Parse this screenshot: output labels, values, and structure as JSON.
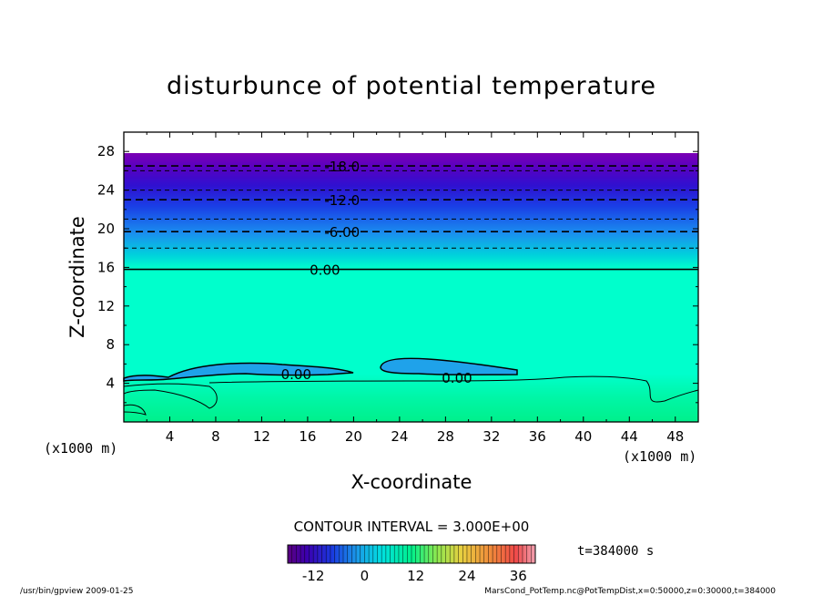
{
  "chart_data": {
    "type": "heatmap",
    "title": "disturbunce of potential temperature",
    "xlabel": "X-coordinate",
    "ylabel": "Z-coordinate",
    "x_unit_label": "(x1000 m)",
    "z_unit_label": "(x1000 m)",
    "xlim": [
      0,
      50
    ],
    "ylim": [
      0,
      30
    ],
    "x_ticks": [
      4,
      8,
      12,
      16,
      20,
      24,
      28,
      32,
      36,
      40,
      44,
      48
    ],
    "y_ticks": [
      4,
      8,
      12,
      16,
      20,
      24,
      28
    ],
    "contour_interval_label": "CONTOUR INTERVAL = 3.000E+00",
    "contour_labels": [
      {
        "text": "-18.0",
        "x": 19,
        "z": 26.5
      },
      {
        "text": "-12.0",
        "x": 19,
        "z": 23.0
      },
      {
        "text": "-6.00",
        "x": 19,
        "z": 19.7
      },
      {
        "text": "0.00",
        "x": 17.5,
        "z": 15.8
      },
      {
        "text": "0.00",
        "x": 15,
        "z": 5.0
      },
      {
        "text": "0.00",
        "x": 29,
        "z": 4.6
      }
    ],
    "contour_levels": [
      {
        "level": -21,
        "z": 26.0
      },
      {
        "level": -18,
        "z": 26.5
      },
      {
        "level": -15,
        "z": 24.0
      },
      {
        "level": -12,
        "z": 23.0
      },
      {
        "level": -9,
        "z": 21.0
      },
      {
        "level": -6,
        "z": 19.7
      },
      {
        "level": -3,
        "z": 18.0
      },
      {
        "level": 0,
        "z": 15.8
      }
    ],
    "colorbar": {
      "min": -18,
      "max": 40,
      "tick_labels": [
        "-12",
        "0",
        "12",
        "24",
        "36"
      ],
      "tick_values": [
        -12,
        0,
        12,
        24,
        36
      ]
    },
    "time_label": "t=384000 s",
    "colors": {
      "background_field": "#00ffcc",
      "top_band": "#7a00b4",
      "mid_blue": "#1f5af0",
      "near_surface_green": "#00f08c"
    }
  },
  "footer": {
    "left": "/usr/bin/gpview   2009-01-25",
    "right": "MarsCond_PotTemp.nc@PotTempDist,x=0:50000,z=0:30000,t=384000"
  }
}
